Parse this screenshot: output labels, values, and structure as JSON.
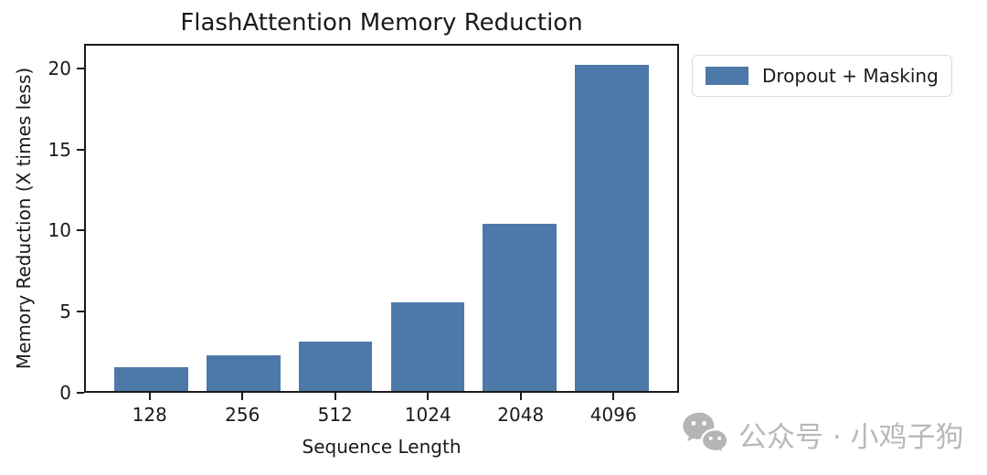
{
  "chart_data": {
    "type": "bar",
    "title": "FlashAttention Memory Reduction",
    "xlabel": "Sequence Length",
    "ylabel": "Memory Reduction (X times less)",
    "categories": [
      "128",
      "256",
      "512",
      "1024",
      "2048",
      "4096"
    ],
    "values": [
      1.5,
      2.2,
      3.1,
      5.5,
      10.4,
      20.3
    ],
    "series": [
      {
        "name": "Dropout + Masking",
        "values": [
          1.5,
          2.2,
          3.1,
          5.5,
          10.4,
          20.3
        ]
      }
    ],
    "yticks": [
      0,
      5,
      10,
      15,
      20
    ],
    "ylim": [
      0,
      21.5
    ],
    "bar_color": "#4d79a9",
    "grid": false,
    "legend_position": "outside-top-right"
  },
  "legend": {
    "label": "Dropout + Masking"
  },
  "watermark": {
    "text": "公众号 · 小鸡子狗",
    "icon": "wechat-icon",
    "color": "#b8b8b8"
  }
}
